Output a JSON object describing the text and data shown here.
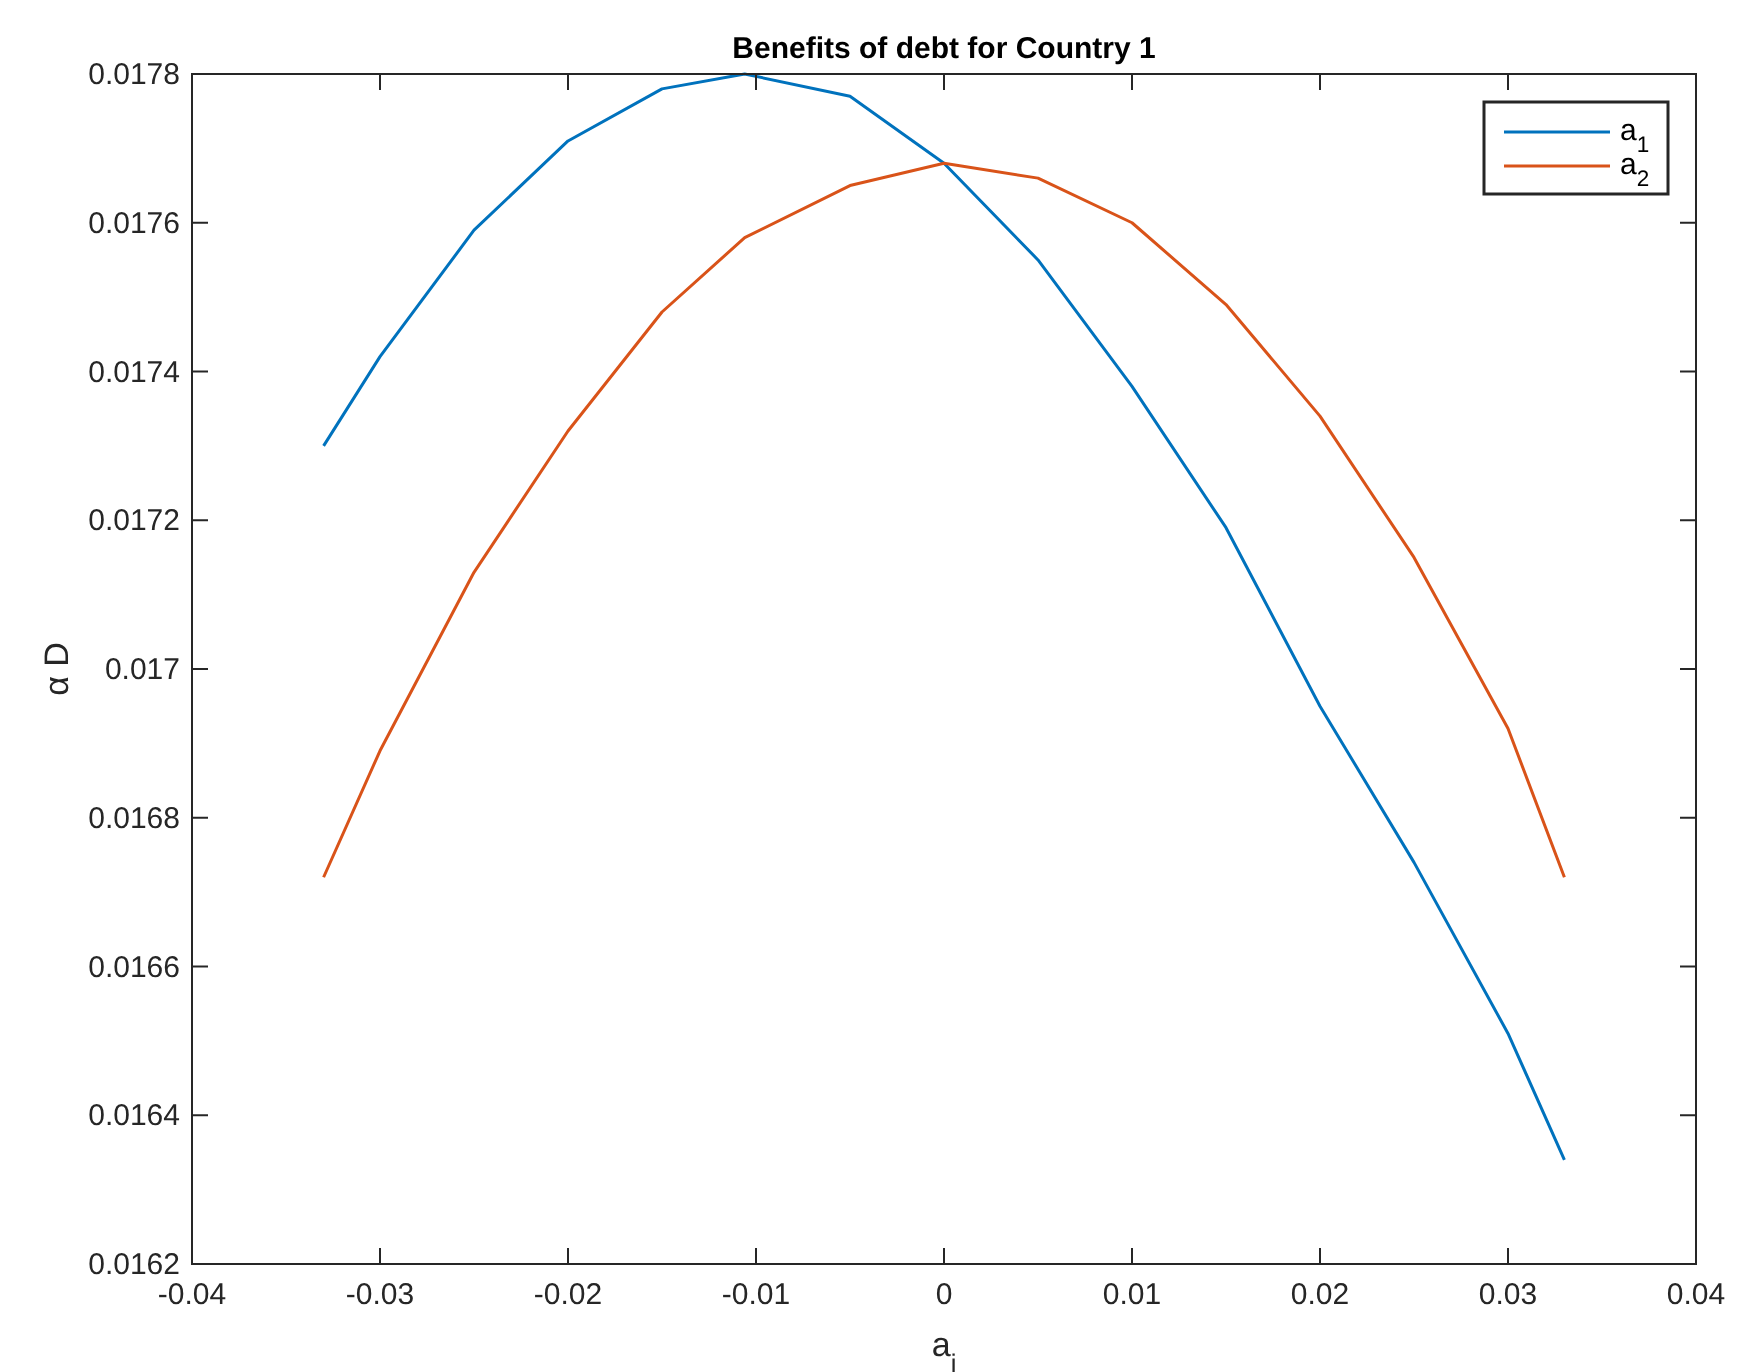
{
  "chart_data": {
    "type": "line",
    "title": "Benefits of debt for Country 1",
    "xlabel": "a$_{i}$",
    "ylabel": "α D",
    "x": [
      -0.033,
      -0.03,
      -0.025,
      -0.02,
      -0.015,
      -0.0106,
      -0.005,
      0,
      0.005,
      0.01,
      0.015,
      0.02,
      0.025,
      0.03,
      0.033
    ],
    "series": [
      {
        "name": "a$_{1}$",
        "color": "#0072bd",
        "values": [
          0.0173,
          0.01742,
          0.01759,
          0.01771,
          0.01778,
          0.0178,
          0.01777,
          0.01768,
          0.01755,
          0.01738,
          0.01719,
          0.01695,
          0.01674,
          0.01651,
          0.01634
        ]
      },
      {
        "name": "a$_{2}$",
        "color": "#d95319",
        "values": [
          0.01672,
          0.01689,
          0.01713,
          0.01732,
          0.01748,
          0.01758,
          0.01765,
          0.01768,
          0.01766,
          0.0176,
          0.01749,
          0.01734,
          0.01715,
          0.01692,
          0.01672
        ]
      }
    ],
    "xlim": [
      -0.04,
      0.04
    ],
    "xticks": [
      -0.04,
      -0.03,
      -0.02,
      -0.01,
      0,
      0.01,
      0.02,
      0.03,
      0.04
    ],
    "ylim": [
      0.0162,
      0.0178
    ],
    "yticks": [
      0.0162,
      0.0164,
      0.0166,
      0.0168,
      0.017,
      0.0172,
      0.0174,
      0.0176,
      0.0178
    ],
    "grid": false,
    "legend": "top right",
    "line_style": "solid",
    "marker": "none"
  }
}
